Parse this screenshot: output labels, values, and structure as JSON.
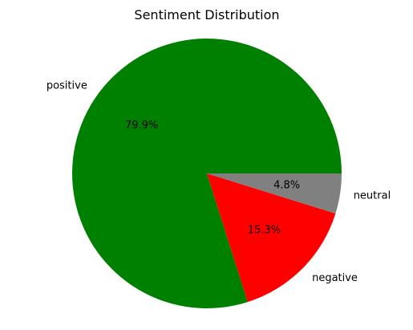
{
  "chart_data": {
    "type": "pie",
    "title": "Sentiment Distribution",
    "categories": [
      "positive",
      "negative",
      "neutral"
    ],
    "values": [
      79.9,
      15.3,
      4.8
    ],
    "value_labels": [
      "79.9%",
      "15.3%",
      "4.8%"
    ],
    "colors": [
      "#008000",
      "#ff0000",
      "#808080"
    ],
    "start_angle_deg": 0,
    "direction": "counterclockwise"
  }
}
